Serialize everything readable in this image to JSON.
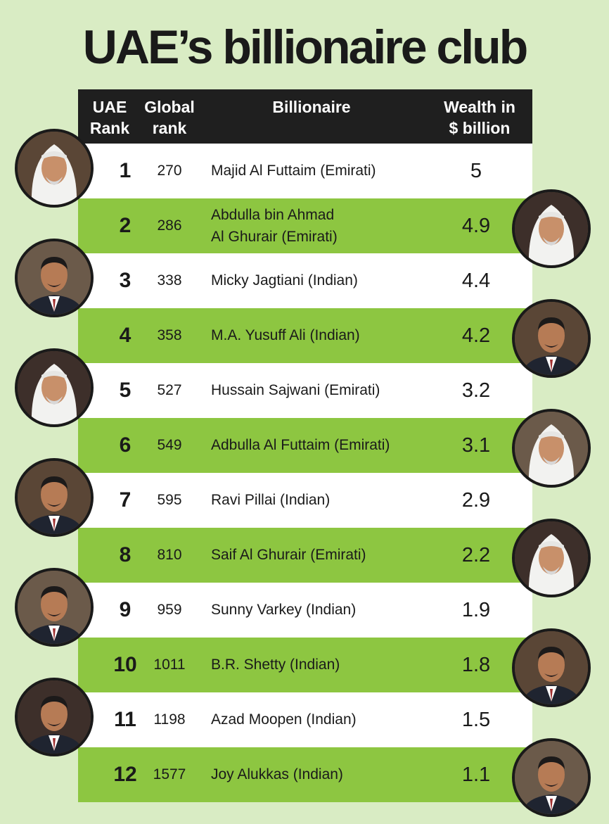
{
  "title": "UAE’s billionaire club",
  "chart_data": {
    "type": "table",
    "title": "UAE’s billionaire club",
    "columns": [
      "UAE Rank",
      "Global rank",
      "Billionaire",
      "Wealth in $ billion"
    ],
    "header": {
      "uae_rank": [
        "UAE",
        "Rank"
      ],
      "global_rank": [
        "Global",
        "rank"
      ],
      "billionaire": "Billionaire",
      "wealth": [
        "Wealth in",
        "$ billion"
      ]
    },
    "rows": [
      {
        "rank": "1",
        "global": "270",
        "name": [
          "Majid Al Futtaim (Emirati)"
        ],
        "wealth": "5"
      },
      {
        "rank": "2",
        "global": "286",
        "name": [
          "Abdulla bin Ahmad",
          "Al Ghurair (Emirati)"
        ],
        "wealth": "4.9"
      },
      {
        "rank": "3",
        "global": "338",
        "name": [
          "Micky Jagtiani (Indian)"
        ],
        "wealth": "4.4"
      },
      {
        "rank": "4",
        "global": "358",
        "name": [
          "M.A. Yusuff Ali (Indian)"
        ],
        "wealth": "4.2"
      },
      {
        "rank": "5",
        "global": "527",
        "name": [
          "Hussain Sajwani (Emirati)"
        ],
        "wealth": "3.2"
      },
      {
        "rank": "6",
        "global": "549",
        "name": [
          "Adbulla Al Futtaim (Emirati)"
        ],
        "wealth": "3.1"
      },
      {
        "rank": "7",
        "global": "595",
        "name": [
          "Ravi Pillai (Indian)"
        ],
        "wealth": "2.9"
      },
      {
        "rank": "8",
        "global": "810",
        "name": [
          "Saif Al Ghurair (Emirati)"
        ],
        "wealth": "2.2"
      },
      {
        "rank": "9",
        "global": "959",
        "name": [
          "Sunny Varkey (Indian)"
        ],
        "wealth": "1.9"
      },
      {
        "rank": "10",
        "global": "1011",
        "name": [
          "B.R. Shetty (Indian)"
        ],
        "wealth": "1.8"
      },
      {
        "rank": "11",
        "global": "1198",
        "name": [
          "Azad Moopen (Indian)"
        ],
        "wealth": "1.5"
      },
      {
        "rank": "12",
        "global": "1577",
        "name": [
          "Joy Alukkas (Indian)"
        ],
        "wealth": "1.1"
      }
    ],
    "portraits": [
      {
        "side": "left",
        "attire": "white-ghutra"
      },
      {
        "side": "right",
        "attire": "white-ghutra"
      },
      {
        "side": "left",
        "attire": "suit"
      },
      {
        "side": "right",
        "attire": "suit"
      },
      {
        "side": "left",
        "attire": "white-ghutra"
      },
      {
        "side": "right",
        "attire": "white-ghutra"
      },
      {
        "side": "left",
        "attire": "suit"
      },
      {
        "side": "right",
        "attire": "white-ghutra"
      },
      {
        "side": "left",
        "attire": "suit"
      },
      {
        "side": "right",
        "attire": "suit"
      },
      {
        "side": "left",
        "attire": "suit"
      },
      {
        "side": "right",
        "attire": "suit"
      }
    ]
  },
  "colors": {
    "page_background": "#d9ecc4",
    "header_background": "#1f1f1f",
    "row_green": "#8dc641",
    "row_white": "#ffffff",
    "text": "#1a1a1a"
  }
}
